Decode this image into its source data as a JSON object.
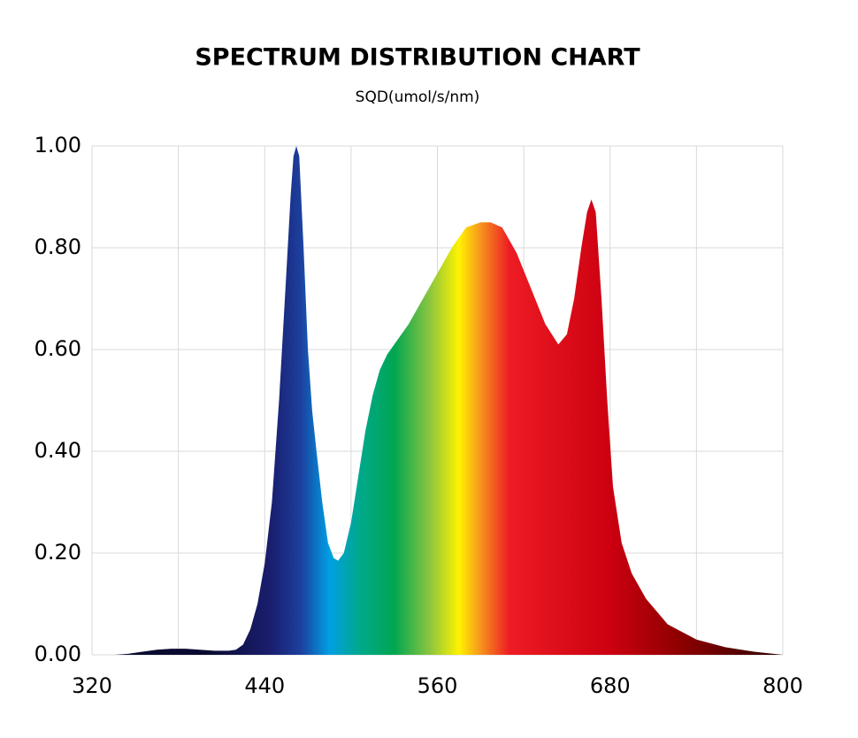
{
  "chart_data": {
    "type": "area",
    "title": "SPECTRUM DISTRIBUTION CHART",
    "subtitle": "SQD(umol/s/nm)",
    "x": [
      336,
      345,
      355,
      365,
      375,
      385,
      395,
      405,
      415,
      420,
      425,
      430,
      435,
      440,
      445,
      450,
      455,
      458,
      460,
      462,
      464,
      467,
      470,
      473,
      476,
      480,
      484,
      488,
      491,
      495,
      500,
      505,
      510,
      515,
      520,
      525,
      530,
      540,
      550,
      560,
      570,
      580,
      590,
      597,
      605,
      615,
      625,
      635,
      644,
      650,
      655,
      660,
      664,
      667,
      670,
      674,
      678,
      682,
      688,
      695,
      705,
      720,
      740,
      760,
      780,
      800
    ],
    "values": [
      0,
      0.002,
      0.006,
      0.01,
      0.012,
      0.012,
      0.01,
      0.008,
      0.008,
      0.01,
      0.02,
      0.05,
      0.1,
      0.18,
      0.3,
      0.5,
      0.75,
      0.9,
      0.98,
      1.0,
      0.98,
      0.8,
      0.6,
      0.48,
      0.4,
      0.3,
      0.22,
      0.19,
      0.185,
      0.2,
      0.26,
      0.35,
      0.44,
      0.51,
      0.56,
      0.59,
      0.61,
      0.65,
      0.7,
      0.75,
      0.8,
      0.84,
      0.85,
      0.85,
      0.84,
      0.79,
      0.72,
      0.65,
      0.61,
      0.63,
      0.7,
      0.8,
      0.87,
      0.895,
      0.87,
      0.7,
      0.5,
      0.33,
      0.22,
      0.16,
      0.11,
      0.06,
      0.03,
      0.015,
      0.006,
      0
    ],
    "xlim": [
      320,
      800
    ],
    "xticks": [
      320,
      440,
      560,
      680,
      800
    ],
    "xgrid": [
      320,
      380,
      440,
      500,
      560,
      620,
      680,
      740,
      800
    ],
    "ylim": [
      0,
      1
    ],
    "yticks": [
      {
        "value": 0,
        "label": "0.00"
      },
      {
        "value": 0.2,
        "label": "0.20"
      },
      {
        "value": 0.4,
        "label": "0.40"
      },
      {
        "value": 0.6,
        "label": "0.60"
      },
      {
        "value": 0.8,
        "label": "0.80"
      },
      {
        "value": 1,
        "label": "1.00"
      }
    ],
    "grid": true,
    "gradient_stops": [
      {
        "value": 400,
        "color": "#0a0a30"
      },
      {
        "value": 445,
        "color": "#1a1f70"
      },
      {
        "value": 465,
        "color": "#1c3f9e"
      },
      {
        "value": 485,
        "color": "#009fe3"
      },
      {
        "value": 505,
        "color": "#00a88f"
      },
      {
        "value": 530,
        "color": "#00a651"
      },
      {
        "value": 555,
        "color": "#8dc63f"
      },
      {
        "value": 575,
        "color": "#fff200"
      },
      {
        "value": 590,
        "color": "#f7941d"
      },
      {
        "value": 610,
        "color": "#ed1c24"
      },
      {
        "value": 680,
        "color": "#cc0010"
      },
      {
        "value": 730,
        "color": "#8b0000"
      },
      {
        "value": 790,
        "color": "#3a0000"
      }
    ]
  }
}
